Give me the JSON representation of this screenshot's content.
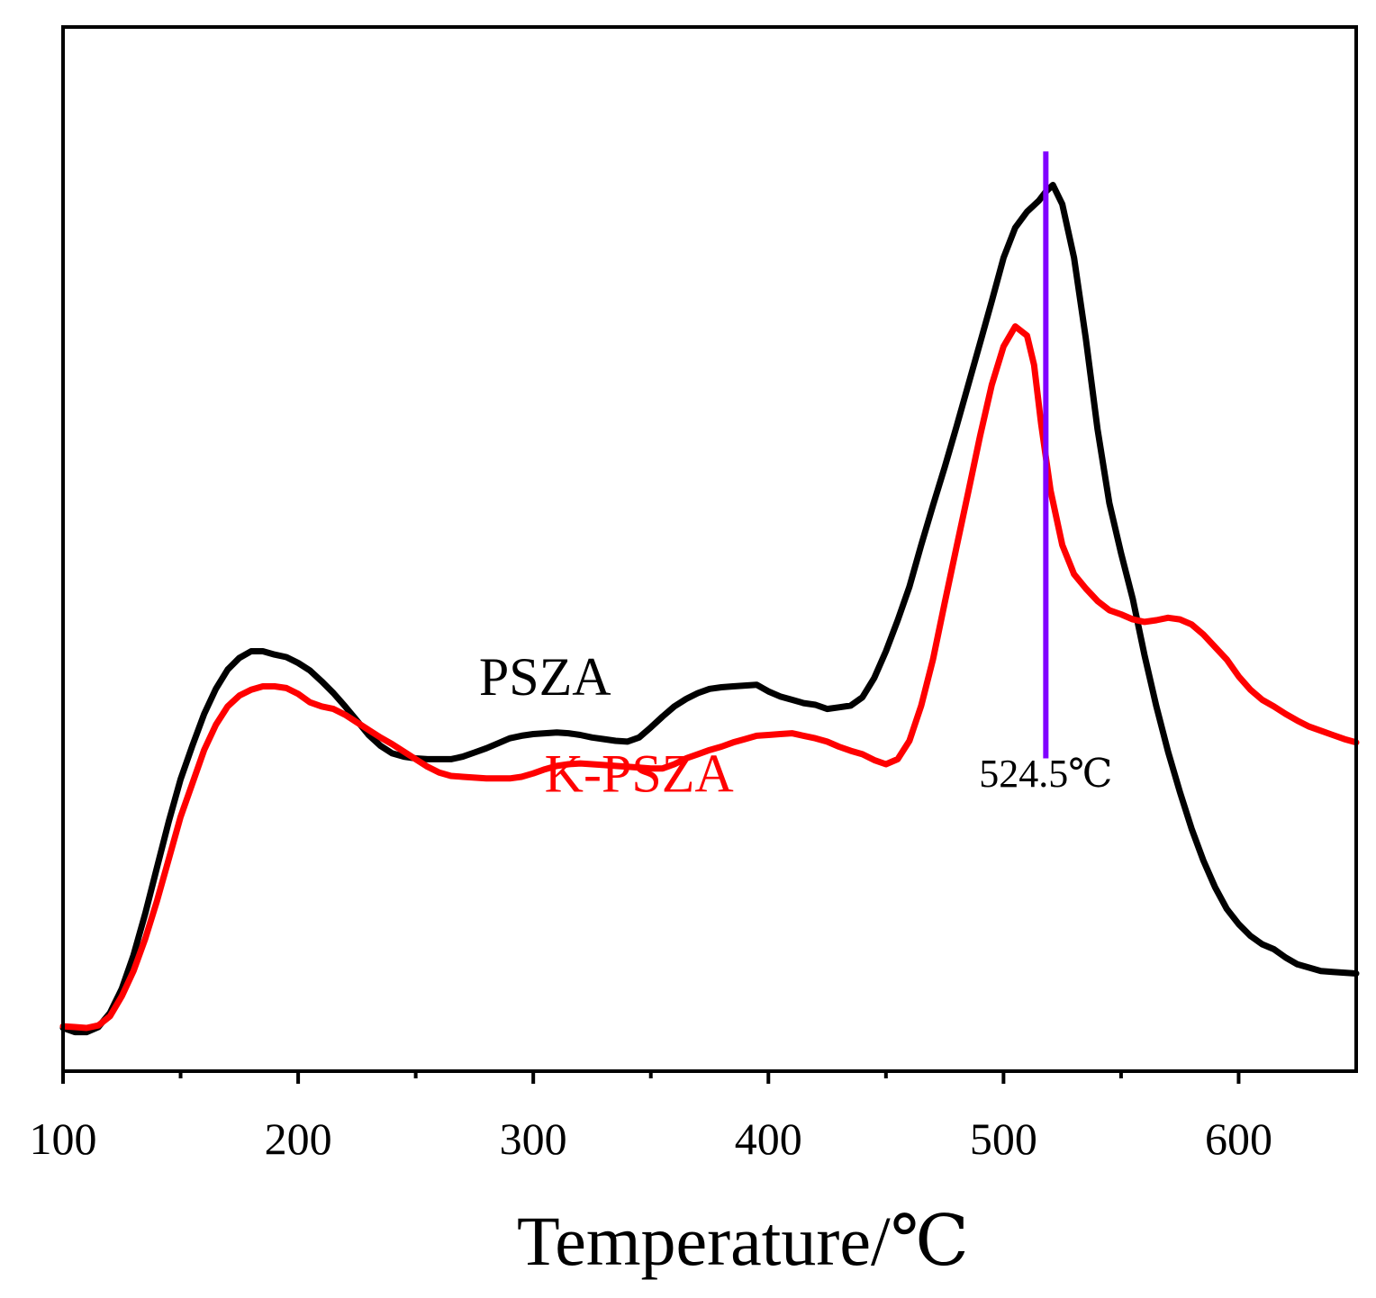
{
  "chart_data": {
    "type": "line",
    "title": "",
    "xlabel": "Temperature/℃",
    "ylabel": "",
    "xlim": [
      100,
      650
    ],
    "ylim": [
      0,
      100
    ],
    "xticks": [
      100,
      200,
      300,
      400,
      500,
      600
    ],
    "xtick_labels": [
      "100",
      "200",
      "300",
      "400",
      "500",
      "600"
    ],
    "minor_xticks": [
      150,
      250,
      350,
      450,
      550
    ],
    "yticks_shown": false,
    "grid": false,
    "series": [
      {
        "name": "PSZA",
        "color": "#000000",
        "x": [
          100,
          105,
          110,
          115,
          120,
          125,
          130,
          135,
          140,
          145,
          150,
          155,
          160,
          165,
          170,
          175,
          180,
          185,
          190,
          195,
          200,
          205,
          210,
          215,
          220,
          225,
          230,
          235,
          240,
          245,
          250,
          255,
          260,
          265,
          270,
          275,
          280,
          285,
          290,
          295,
          300,
          305,
          310,
          315,
          320,
          325,
          330,
          335,
          340,
          345,
          350,
          355,
          360,
          365,
          370,
          375,
          380,
          385,
          390,
          395,
          400,
          405,
          410,
          415,
          420,
          425,
          430,
          435,
          440,
          445,
          450,
          455,
          460,
          465,
          470,
          475,
          480,
          485,
          490,
          495,
          500,
          505,
          510,
          515,
          518,
          521,
          525,
          530,
          535,
          540,
          545,
          550,
          555,
          560,
          565,
          570,
          575,
          580,
          585,
          590,
          595,
          600,
          605,
          610,
          615,
          620,
          625,
          630,
          635,
          640,
          645,
          650
        ],
        "values": [
          2.8,
          2.3,
          2.3,
          2.9,
          4.6,
          7.5,
          11.5,
          16.5,
          22,
          27.5,
          32.5,
          36.5,
          40.3,
          43.3,
          45.6,
          47,
          47.8,
          47.8,
          47.4,
          47.1,
          46.4,
          45.5,
          44.2,
          42.8,
          41.2,
          39.5,
          37.8,
          36.5,
          35.6,
          35.2,
          35.0,
          34.9,
          34.9,
          34.9,
          35.2,
          35.7,
          36.2,
          36.8,
          37.4,
          37.7,
          37.9,
          38.0,
          38.1,
          38.0,
          37.8,
          37.5,
          37.3,
          37.1,
          37.0,
          37.5,
          38.7,
          40.0,
          41.2,
          42.1,
          42.8,
          43.3,
          43.5,
          43.6,
          43.7,
          43.8,
          43.0,
          42.4,
          42.0,
          41.6,
          41.4,
          40.9,
          41.1,
          41.3,
          42.3,
          44.6,
          47.8,
          51.5,
          55.5,
          60.5,
          65.2,
          69.8,
          74.6,
          79.6,
          84.6,
          89.6,
          94.8,
          98.4,
          100.3,
          101.6,
          102.7,
          103.5,
          101.2,
          94.8,
          85.2,
          74.3,
          65.5,
          59.5,
          54.0,
          47.3,
          41.2,
          35.8,
          31.0,
          26.6,
          22.8,
          19.6,
          17.0,
          15.2,
          13.8,
          12.8,
          12.2,
          11.2,
          10.4,
          10.0,
          9.6,
          9.5,
          9.4,
          9.3
        ]
      },
      {
        "name": "K-PSZA",
        "color": "#ff0000",
        "x": [
          100,
          105,
          110,
          115,
          120,
          125,
          130,
          135,
          140,
          145,
          150,
          155,
          160,
          165,
          170,
          175,
          180,
          185,
          190,
          195,
          200,
          205,
          210,
          215,
          220,
          225,
          230,
          235,
          240,
          245,
          250,
          255,
          260,
          265,
          270,
          275,
          280,
          285,
          290,
          295,
          300,
          305,
          310,
          315,
          320,
          325,
          330,
          335,
          340,
          345,
          350,
          355,
          360,
          365,
          370,
          375,
          380,
          385,
          390,
          395,
          400,
          405,
          410,
          415,
          420,
          425,
          430,
          435,
          440,
          445,
          450,
          455,
          460,
          465,
          470,
          475,
          480,
          485,
          490,
          495,
          500,
          505,
          510,
          513,
          516,
          520,
          525,
          530,
          535,
          540,
          545,
          550,
          555,
          560,
          565,
          570,
          575,
          580,
          585,
          590,
          595,
          600,
          605,
          610,
          615,
          620,
          625,
          630,
          635,
          640,
          645,
          650
        ],
        "values": [
          3.0,
          2.9,
          2.8,
          3.1,
          4.2,
          6.6,
          9.6,
          13.5,
          18.0,
          23.0,
          28.0,
          32.0,
          36.0,
          39.0,
          41.2,
          42.5,
          43.2,
          43.6,
          43.6,
          43.4,
          42.7,
          41.7,
          41.2,
          40.9,
          40.2,
          39.3,
          38.4,
          37.5,
          36.7,
          35.8,
          34.9,
          34.0,
          33.3,
          32.9,
          32.8,
          32.7,
          32.6,
          32.6,
          32.6,
          32.8,
          33.2,
          33.7,
          34.1,
          34.3,
          34.4,
          34.3,
          34.2,
          34.1,
          34.0,
          33.9,
          33.8,
          33.8,
          34.3,
          35.0,
          35.5,
          36.0,
          36.4,
          36.9,
          37.3,
          37.7,
          37.8,
          37.9,
          38.0,
          37.7,
          37.4,
          37.0,
          36.4,
          35.9,
          35.5,
          34.8,
          34.3,
          34.9,
          37.1,
          41.3,
          46.8,
          53.6,
          60.2,
          66.8,
          73.5,
          79.6,
          84.2,
          86.6,
          85.5,
          82.0,
          75.0,
          67.0,
          60.5,
          57.0,
          55.3,
          53.8,
          52.7,
          52.2,
          51.6,
          51.3,
          51.5,
          51.8,
          51.6,
          51.0,
          49.8,
          48.3,
          46.8,
          44.8,
          43.2,
          42.0,
          41.2,
          40.3,
          39.5,
          38.8,
          38.3,
          37.8,
          37.3,
          36.9
        ]
      }
    ],
    "annotations": [
      {
        "id": "psza_label",
        "text": "PSZA",
        "x": 305,
        "y": 42.6,
        "color": "#000000"
      },
      {
        "id": "kpsza_label",
        "text": "K-PSZA",
        "x": 345,
        "y": 31.0,
        "color": "#ff0000"
      },
      {
        "id": "peak_line",
        "type": "vline",
        "x": 518,
        "y_from": 35.0,
        "y_to": 107.5,
        "color": "#8000ff"
      },
      {
        "id": "peak_label",
        "text": "524.5℃",
        "x": 518,
        "y": 31.6,
        "color": "#000000"
      }
    ]
  }
}
